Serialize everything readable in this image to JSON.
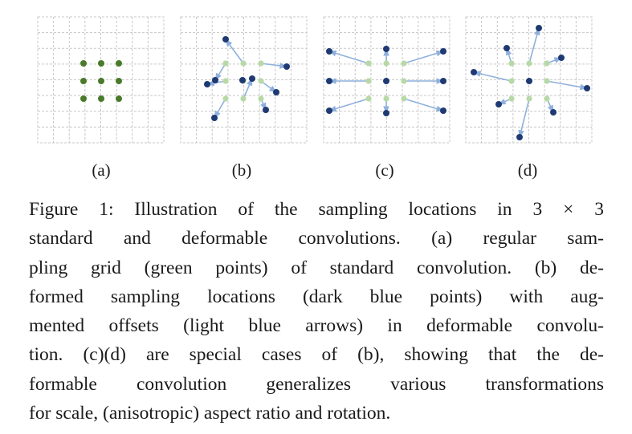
{
  "panels": [
    {
      "id": "a",
      "label": "(a)"
    },
    {
      "id": "b",
      "label": "(b)"
    },
    {
      "id": "c",
      "label": "(c)"
    },
    {
      "id": "d",
      "label": "(d)"
    }
  ],
  "colors": {
    "grid": "#c8c8c8",
    "regular_point": "#4a7a2a",
    "sampling_point_light": "#b7d9a6",
    "deformed_point": "#1f3a73",
    "offset_arrow": "#8fb0dd"
  },
  "caption": {
    "lines": [
      "Figure 1:  Illustration of the sampling locations in 3 × 3",
      "standard and deformable convolutions.   (a) regular sam-",
      "pling grid (green points) of standard convolution.  (b) de-",
      "formed sampling locations (dark blue points) with aug-",
      "mented offsets (light blue arrows) in deformable convolu-",
      "tion.  (c)(d) are special cases of (b), showing that the de-",
      "formable convolution generalizes various transformations",
      "for scale, (anisotropic) aspect ratio and rotation."
    ]
  }
}
